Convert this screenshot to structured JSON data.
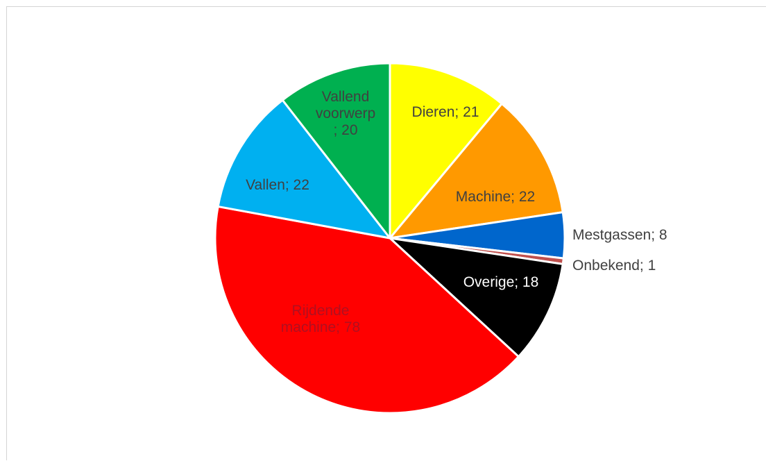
{
  "chart_data": {
    "type": "pie",
    "title": "",
    "start": "top",
    "direction": "clockwise",
    "legend": "none",
    "slices": [
      {
        "label": "Dieren; 21",
        "category": "Dieren",
        "value": 21,
        "color": "#ffff00",
        "label_color": "#404040"
      },
      {
        "label": "Machine; 22",
        "category": "Machine",
        "value": 22,
        "color": "#ff9900",
        "label_color": "#404040"
      },
      {
        "label": "Mestgassen; 8",
        "category": "Mestgassen",
        "value": 8,
        "color": "#0066cc",
        "label_color": "#404040"
      },
      {
        "label": "Onbekend; 1",
        "category": "Onbekend",
        "value": 1,
        "color": "#c0504d",
        "label_color": "#404040"
      },
      {
        "label": "Overige; 18",
        "category": "Overige",
        "value": 18,
        "color": "#000000",
        "label_color": "#ffffff"
      },
      {
        "label": "Rijdende machine; 78",
        "category": "Rijdende machine",
        "value": 78,
        "color": "#ff0000",
        "label_color": "#b01020"
      },
      {
        "label": "Vallen; 22",
        "category": "Vallen",
        "value": 22,
        "color": "#00b0f0",
        "label_color": "#404040"
      },
      {
        "label": "Vallend voorwerp; 20",
        "category": "Vallend voorwerp",
        "value": 20,
        "color": "#00b050",
        "label_color": "#404040"
      }
    ]
  }
}
